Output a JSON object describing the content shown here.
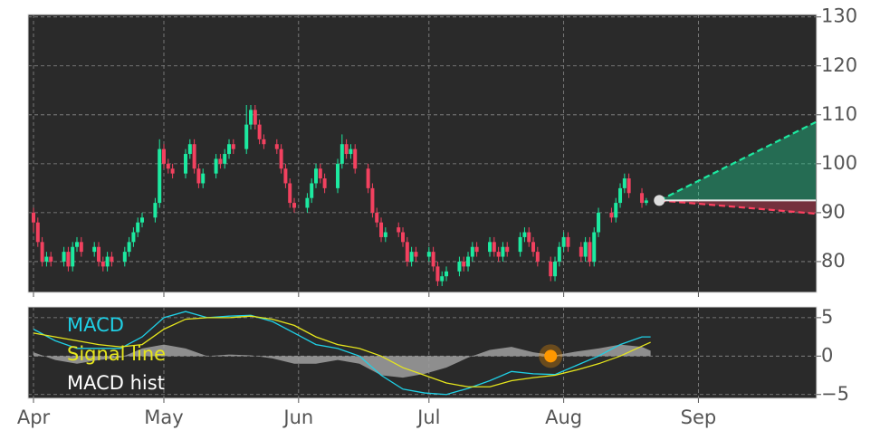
{
  "chart_data": [
    {
      "type": "candlestick",
      "x": [
        0,
        1,
        2,
        3,
        4,
        7,
        8,
        9,
        10,
        11,
        14,
        15,
        16,
        17,
        18,
        21,
        22,
        23,
        24,
        25,
        28,
        29,
        30,
        31,
        32,
        35,
        36,
        37,
        38,
        39,
        42,
        43,
        44,
        45,
        46,
        49,
        50,
        51,
        52,
        53,
        56,
        57,
        58,
        59,
        60,
        63,
        64,
        65,
        66,
        67,
        70,
        71,
        72,
        73,
        74,
        77,
        78,
        79,
        80,
        81,
        84,
        85,
        86,
        87,
        88,
        91,
        92,
        93,
        94,
        95,
        98,
        99,
        100,
        101,
        102,
        105,
        106,
        107,
        108,
        109,
        112,
        113,
        114,
        115,
        116,
        119,
        120,
        121,
        122,
        123,
        126,
        127,
        128,
        129,
        130,
        133,
        134,
        135,
        136,
        137,
        140,
        141
      ],
      "open": [
        90,
        88,
        84,
        80,
        81,
        80,
        82,
        79,
        83,
        84,
        82,
        83,
        80,
        79,
        81,
        80,
        82,
        84,
        86,
        88,
        89,
        92,
        103,
        100,
        99,
        98,
        102,
        104,
        99,
        96,
        98,
        101,
        100,
        102,
        104,
        103,
        108,
        111,
        108,
        105,
        104,
        103,
        99,
        96,
        92,
        91,
        93,
        96,
        99,
        97,
        95,
        100,
        104,
        102,
        103,
        99,
        95,
        90,
        88,
        85,
        87,
        86,
        84,
        80,
        82,
        81,
        82,
        79,
        76,
        77,
        78,
        80,
        79,
        81,
        83,
        82,
        84,
        82,
        81,
        83,
        82,
        85,
        86,
        84,
        82,
        80,
        77,
        80,
        83,
        85,
        83,
        81,
        84,
        80,
        86,
        90,
        89,
        92,
        95,
        97,
        94,
        92
      ],
      "high": [
        91,
        89,
        85,
        82,
        82,
        83,
        83,
        84,
        85,
        85,
        84,
        84,
        81,
        82,
        82,
        83,
        85,
        87,
        89,
        90,
        93,
        105,
        104,
        101,
        100,
        103,
        105,
        105,
        100,
        99,
        102,
        102,
        103,
        105,
        105,
        112,
        112,
        112,
        109,
        106,
        105,
        104,
        100,
        97,
        93,
        94,
        97,
        100,
        100,
        98,
        101,
        106,
        105,
        104,
        104,
        100,
        96,
        91,
        89,
        87,
        88,
        87,
        85,
        83,
        83,
        83,
        83,
        80,
        78,
        79,
        81,
        81,
        82,
        84,
        84,
        85,
        85,
        83,
        84,
        84,
        86,
        87,
        87,
        85,
        83,
        81,
        81,
        84,
        86,
        86,
        84,
        85,
        85,
        87,
        91,
        91,
        93,
        96,
        98,
        98,
        95,
        93
      ],
      "low": [
        86,
        83,
        79,
        79,
        79,
        79,
        78,
        78,
        82,
        81,
        81,
        79,
        78,
        78,
        79,
        79,
        81,
        83,
        85,
        87,
        88,
        91,
        99,
        98,
        97,
        97,
        101,
        98,
        95,
        95,
        97,
        99,
        99,
        101,
        102,
        102,
        107,
        107,
        104,
        103,
        102,
        98,
        95,
        91,
        90,
        90,
        92,
        95,
        96,
        94,
        94,
        99,
        101,
        101,
        98,
        94,
        89,
        87,
        84,
        84,
        85,
        83,
        79,
        79,
        80,
        80,
        78,
        75,
        75,
        76,
        77,
        78,
        78,
        80,
        81,
        81,
        81,
        80,
        80,
        81,
        81,
        84,
        83,
        81,
        79,
        76,
        76,
        79,
        82,
        82,
        80,
        80,
        79,
        79,
        85,
        88,
        88,
        91,
        94,
        93,
        91,
        91.5
      ],
      "close": [
        88,
        84,
        80,
        81,
        80,
        82,
        79,
        83,
        84,
        82,
        83,
        80,
        79,
        81,
        80,
        82,
        84,
        86,
        88,
        89,
        92,
        103,
        100,
        99,
        98,
        102,
        104,
        99,
        96,
        98,
        101,
        100,
        102,
        104,
        103,
        108,
        111,
        108,
        105,
        104,
        103,
        99,
        96,
        92,
        91,
        93,
        96,
        99,
        97,
        95,
        100,
        104,
        102,
        103,
        99,
        95,
        90,
        88,
        85,
        86,
        86,
        84,
        80,
        82,
        81,
        82,
        79,
        76,
        77,
        78,
        80,
        79,
        81,
        83,
        82,
        84,
        82,
        81,
        83,
        82,
        85,
        86,
        84,
        82,
        80,
        77,
        80,
        83,
        85,
        83,
        81,
        84,
        80,
        86,
        90,
        89,
        92,
        95,
        97,
        94,
        92,
        92.5
      ],
      "up_color": "#1de9a0",
      "down_color": "#f2415f",
      "xlim": [
        -1.25,
        180.2
      ],
      "ylim": [
        73.7,
        130.5
      ],
      "yticks": [
        80,
        90,
        100,
        110,
        120,
        130
      ],
      "grid": true,
      "last_close": {
        "x": 144,
        "y": 92.5,
        "color": "#dddddd"
      },
      "projection": {
        "x": [
          144,
          180
        ],
        "upper": [
          92.5,
          108.5
        ],
        "lower": [
          92.5,
          89.8
        ],
        "upper_color": "#1de9a0",
        "lower_color": "#ff4060"
      }
    },
    {
      "type": "macd",
      "x": [
        0,
        5,
        10,
        15,
        20,
        25,
        30,
        35,
        40,
        45,
        50,
        55,
        60,
        65,
        70,
        75,
        80,
        85,
        90,
        95,
        100,
        105,
        110,
        115,
        120,
        125,
        130,
        135,
        140,
        142
      ],
      "series": [
        {
          "name": "MACD",
          "color": "#1fd0e6",
          "values": [
            3.5,
            2,
            1,
            1,
            1,
            2.5,
            5,
            5.8,
            5,
            5.2,
            5.3,
            4.5,
            3,
            1.5,
            1,
            0,
            -2.5,
            -4.3,
            -4.8,
            -5,
            -4.2,
            -3.2,
            -2,
            -2.3,
            -2.4,
            -1.2,
            0,
            1.5,
            2.5,
            2.5
          ]
        },
        {
          "name": "Signal line",
          "color": "#e6e61c",
          "values": [
            3,
            2.5,
            2,
            1.5,
            1.2,
            1.5,
            3.5,
            4.8,
            5,
            5,
            5.2,
            4.8,
            4,
            2.5,
            1.5,
            1,
            0,
            -1.5,
            -2.5,
            -3.5,
            -4,
            -4,
            -3.2,
            -2.8,
            -2.5,
            -1.8,
            -1,
            0,
            1.3,
            1.8
          ]
        },
        {
          "name": "MACD hist",
          "color": "#a0a0a0",
          "values": [
            0.5,
            -0.5,
            -1,
            -0.5,
            -0.2,
            1,
            1.5,
            1,
            0,
            0.2,
            0.1,
            -0.3,
            -1,
            -1,
            -0.5,
            -1,
            -2.5,
            -2.8,
            -2.3,
            -1.5,
            -0.2,
            0.8,
            1.2,
            0.5,
            0.1,
            0.6,
            1,
            1.5,
            1.2,
            0.7
          ]
        }
      ],
      "xlim": [
        -1.25,
        180.2
      ],
      "ylim": [
        -5.5,
        6.4
      ],
      "yticks": [
        {
          "value": -5,
          "label": "−5"
        },
        0,
        5
      ],
      "xticks": [
        {
          "value": 0,
          "label": "Apr"
        },
        {
          "value": 30,
          "label": "May"
        },
        {
          "value": 61,
          "label": "Jun"
        },
        {
          "value": 91,
          "label": "Jul"
        },
        {
          "value": 122,
          "label": "Aug"
        },
        {
          "value": 153,
          "label": "Sep"
        }
      ],
      "grid": true,
      "marker": {
        "x": 119,
        "y": 0,
        "color": "#ff9800"
      }
    }
  ]
}
